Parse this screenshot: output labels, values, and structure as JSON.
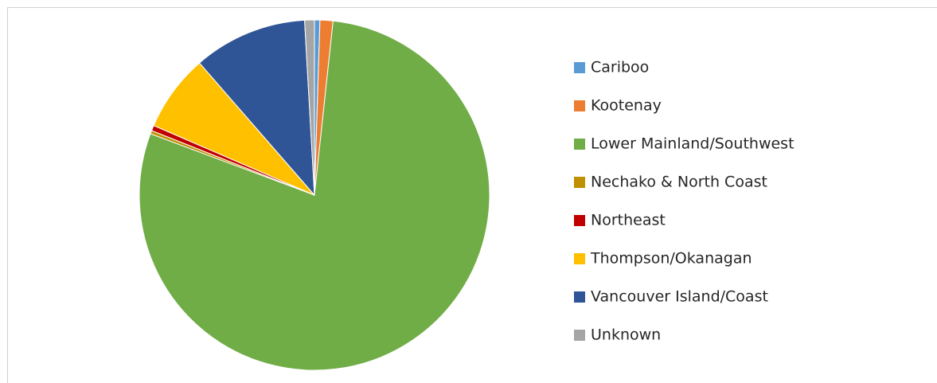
{
  "chart_data": {
    "type": "pie",
    "categories": [
      "Cariboo",
      "Kootenay",
      "Lower Mainland/Southwest",
      "Nechako & North Coast",
      "Northeast",
      "Thompson/Okanagan",
      "Vancouver Island/Coast",
      "Unknown"
    ],
    "values": [
      0.5,
      1.2,
      79.0,
      0.3,
      0.5,
      7.1,
      10.5,
      0.9
    ],
    "colors": [
      "#5b9bd5",
      "#ed7d31",
      "#70ad47",
      "#bf9000",
      "#c00000",
      "#ffc000",
      "#2f5597",
      "#a5a5a5"
    ],
    "legend": "right"
  }
}
